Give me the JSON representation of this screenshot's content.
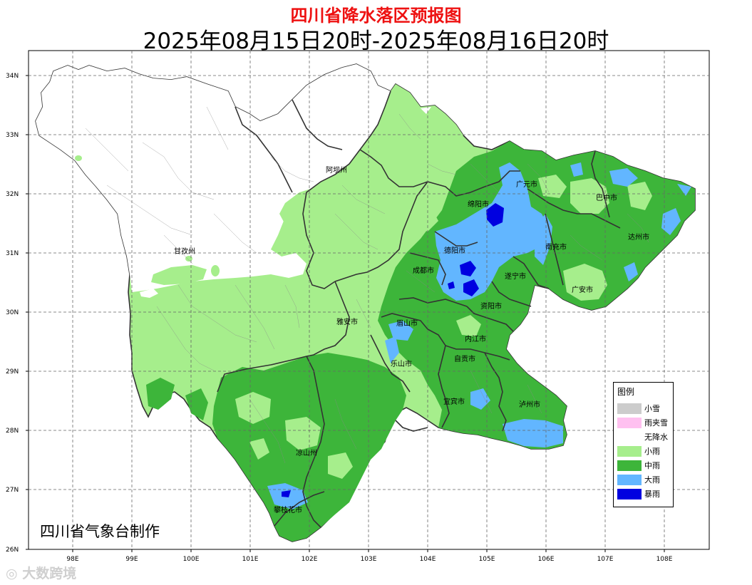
{
  "title": "四川省降水落区预报图",
  "subtitle": "2025年08月15日20时-2025年08月16日20时",
  "credit": "四川省气象台制作",
  "watermark": "大数跨境",
  "axes": {
    "lat_ticks": [
      "34N",
      "33N",
      "32N",
      "31N",
      "30N",
      "29N",
      "28N",
      "27N",
      "26N"
    ],
    "lon_ticks": [
      "98E",
      "99E",
      "100E",
      "101E",
      "102E",
      "103E",
      "104E",
      "105E",
      "106E",
      "107E",
      "108E"
    ]
  },
  "cities": [
    {
      "name": "阿坝州"
    },
    {
      "name": "甘孜州"
    },
    {
      "name": "广元市"
    },
    {
      "name": "巴中市"
    },
    {
      "name": "绵阳市"
    },
    {
      "name": "达州市"
    },
    {
      "name": "德阳市"
    },
    {
      "name": "南充市"
    },
    {
      "name": "成都市"
    },
    {
      "name": "遂宁市"
    },
    {
      "name": "广安市"
    },
    {
      "name": "资阳市"
    },
    {
      "name": "雅安市"
    },
    {
      "name": "眉山市"
    },
    {
      "name": "内江市"
    },
    {
      "name": "乐山市"
    },
    {
      "name": "自贡市"
    },
    {
      "name": "宜宾市"
    },
    {
      "name": "泸州市"
    },
    {
      "name": "凉山州"
    },
    {
      "name": "攀枝花市"
    }
  ],
  "legend": {
    "title": "图例",
    "items": [
      {
        "label": "小雪",
        "color": "#cccccc"
      },
      {
        "label": "雨夹雪",
        "color": "#ffc0f0"
      },
      {
        "label": "无降水",
        "color": "#ffffff"
      },
      {
        "label": "小雨",
        "color": "#a6ee8c"
      },
      {
        "label": "中雨",
        "color": "#3db53a"
      },
      {
        "label": "大雨",
        "color": "#62b6ff"
      },
      {
        "label": "暴雨",
        "color": "#0000e0"
      }
    ]
  },
  "colors": {
    "light_rain": "#a6ee8c",
    "moderate_rain": "#3db53a",
    "heavy_rain": "#62b6ff",
    "rainstorm": "#0000e0",
    "no_precip": "#ffffff",
    "boundary": "#333333",
    "title": "#ee1111"
  }
}
